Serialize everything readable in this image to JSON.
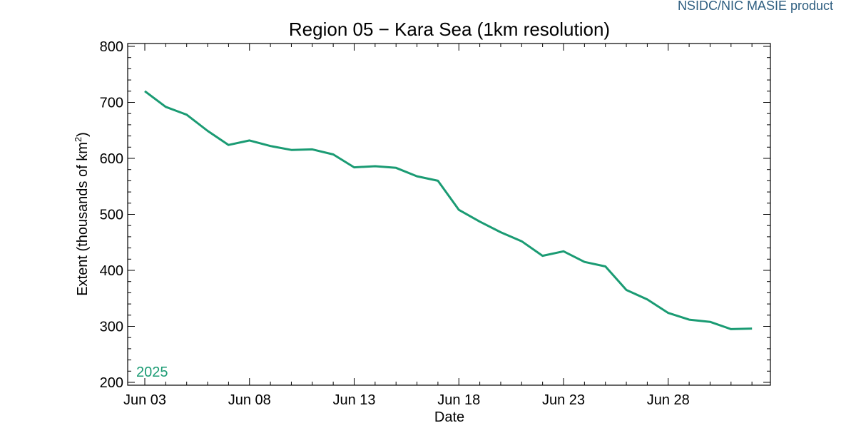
{
  "product_label": "NSIDC/NIC MASIE product",
  "colors": {
    "series": "#1a9b73",
    "product_label": "#2e5e80",
    "axis": "#000000"
  },
  "chart_data": {
    "type": "line",
    "title": "Region 05 − Kara Sea (1km resolution)",
    "xlabel": "Date",
    "ylabel": "Extent (thousands of km²)",
    "ylabel_main": "Extent (thousands of km",
    "ylabel_sup": "2",
    "ylabel_close": ")",
    "ylim": [
      200,
      800
    ],
    "yticks": [
      200,
      300,
      400,
      500,
      600,
      700,
      800
    ],
    "xlim": [
      "2025-06-03",
      "2025-07-03"
    ],
    "xticks": [
      "Jun 03",
      "Jun 08",
      "Jun 13",
      "Jun 18",
      "Jun 23",
      "Jun 28"
    ],
    "grid": false,
    "series": [
      {
        "name": "2025",
        "x": [
          "2025-06-03",
          "2025-06-04",
          "2025-06-05",
          "2025-06-06",
          "2025-06-07",
          "2025-06-08",
          "2025-06-09",
          "2025-06-10",
          "2025-06-11",
          "2025-06-12",
          "2025-06-13",
          "2025-06-14",
          "2025-06-15",
          "2025-06-16",
          "2025-06-17",
          "2025-06-18",
          "2025-06-19",
          "2025-06-20",
          "2025-06-21",
          "2025-06-22",
          "2025-06-23",
          "2025-06-24",
          "2025-06-25",
          "2025-06-26",
          "2025-06-27",
          "2025-06-28",
          "2025-06-29",
          "2025-06-30",
          "2025-07-01",
          "2025-07-02"
        ],
        "values": [
          720,
          692,
          678,
          649,
          624,
          632,
          622,
          615,
          616,
          607,
          584,
          586,
          583,
          568,
          560,
          508,
          487,
          468,
          452,
          426,
          434,
          415,
          407,
          365,
          348,
          324,
          312,
          308,
          295,
          296
        ]
      }
    ]
  }
}
